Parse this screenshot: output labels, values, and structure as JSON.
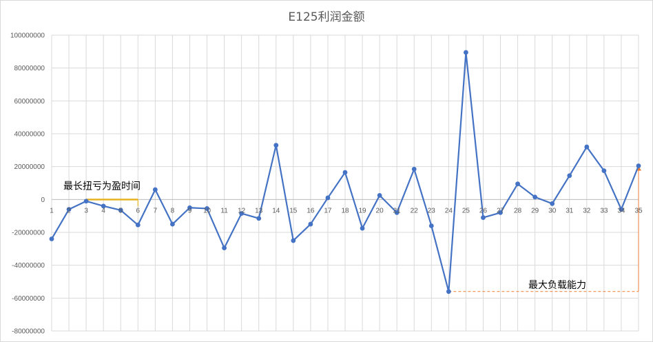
{
  "chart_data": {
    "type": "line",
    "title": "E125利润金额",
    "xlabel": "",
    "ylabel": "",
    "categories": [
      "1",
      "2",
      "3",
      "4",
      "5",
      "6",
      "7",
      "8",
      "9",
      "10",
      "11",
      "12",
      "13",
      "14",
      "15",
      "16",
      "17",
      "18",
      "19",
      "20",
      "21",
      "22",
      "23",
      "24",
      "25",
      "26",
      "27",
      "28",
      "29",
      "30",
      "31",
      "32",
      "33",
      "34",
      "35"
    ],
    "series": [
      {
        "values": [
          -24000000,
          -6000000,
          -1000000,
          -4000000,
          -6500000,
          -15500000,
          6000000,
          -15000000,
          -5000000,
          -5500000,
          -29500000,
          -8500000,
          -11500000,
          33000000,
          -25000000,
          -15000000,
          1000000,
          16500000,
          -17500000,
          2500000,
          -8000000,
          18500000,
          -16000000,
          -56000000,
          89500000,
          -11000000,
          -8000000,
          9500000,
          1500000,
          -2500000,
          14500000,
          32000000,
          17500000,
          -6000000,
          20500000
        ],
        "color": "#4472c4"
      }
    ],
    "ylim": [
      -80000000,
      100000000
    ],
    "yticks": [
      "100000000",
      "80000000",
      "60000000",
      "40000000",
      "20000000",
      "0",
      "-20000000",
      "-40000000",
      "-60000000",
      "-80000000"
    ],
    "grid": "vertical-and-horizontal",
    "legend": "none",
    "annotations": [
      {
        "text": "最长扭亏为盈时间",
        "type": "bracket",
        "x_from": 3,
        "x_to": 6,
        "y": 0,
        "color": "#e6b422"
      },
      {
        "text": "最大负载能力",
        "type": "drawdown",
        "x_from": 24,
        "x_to": 35,
        "y_low": -56000000,
        "y_high": 20500000,
        "color": "#ed7d31"
      }
    ]
  }
}
